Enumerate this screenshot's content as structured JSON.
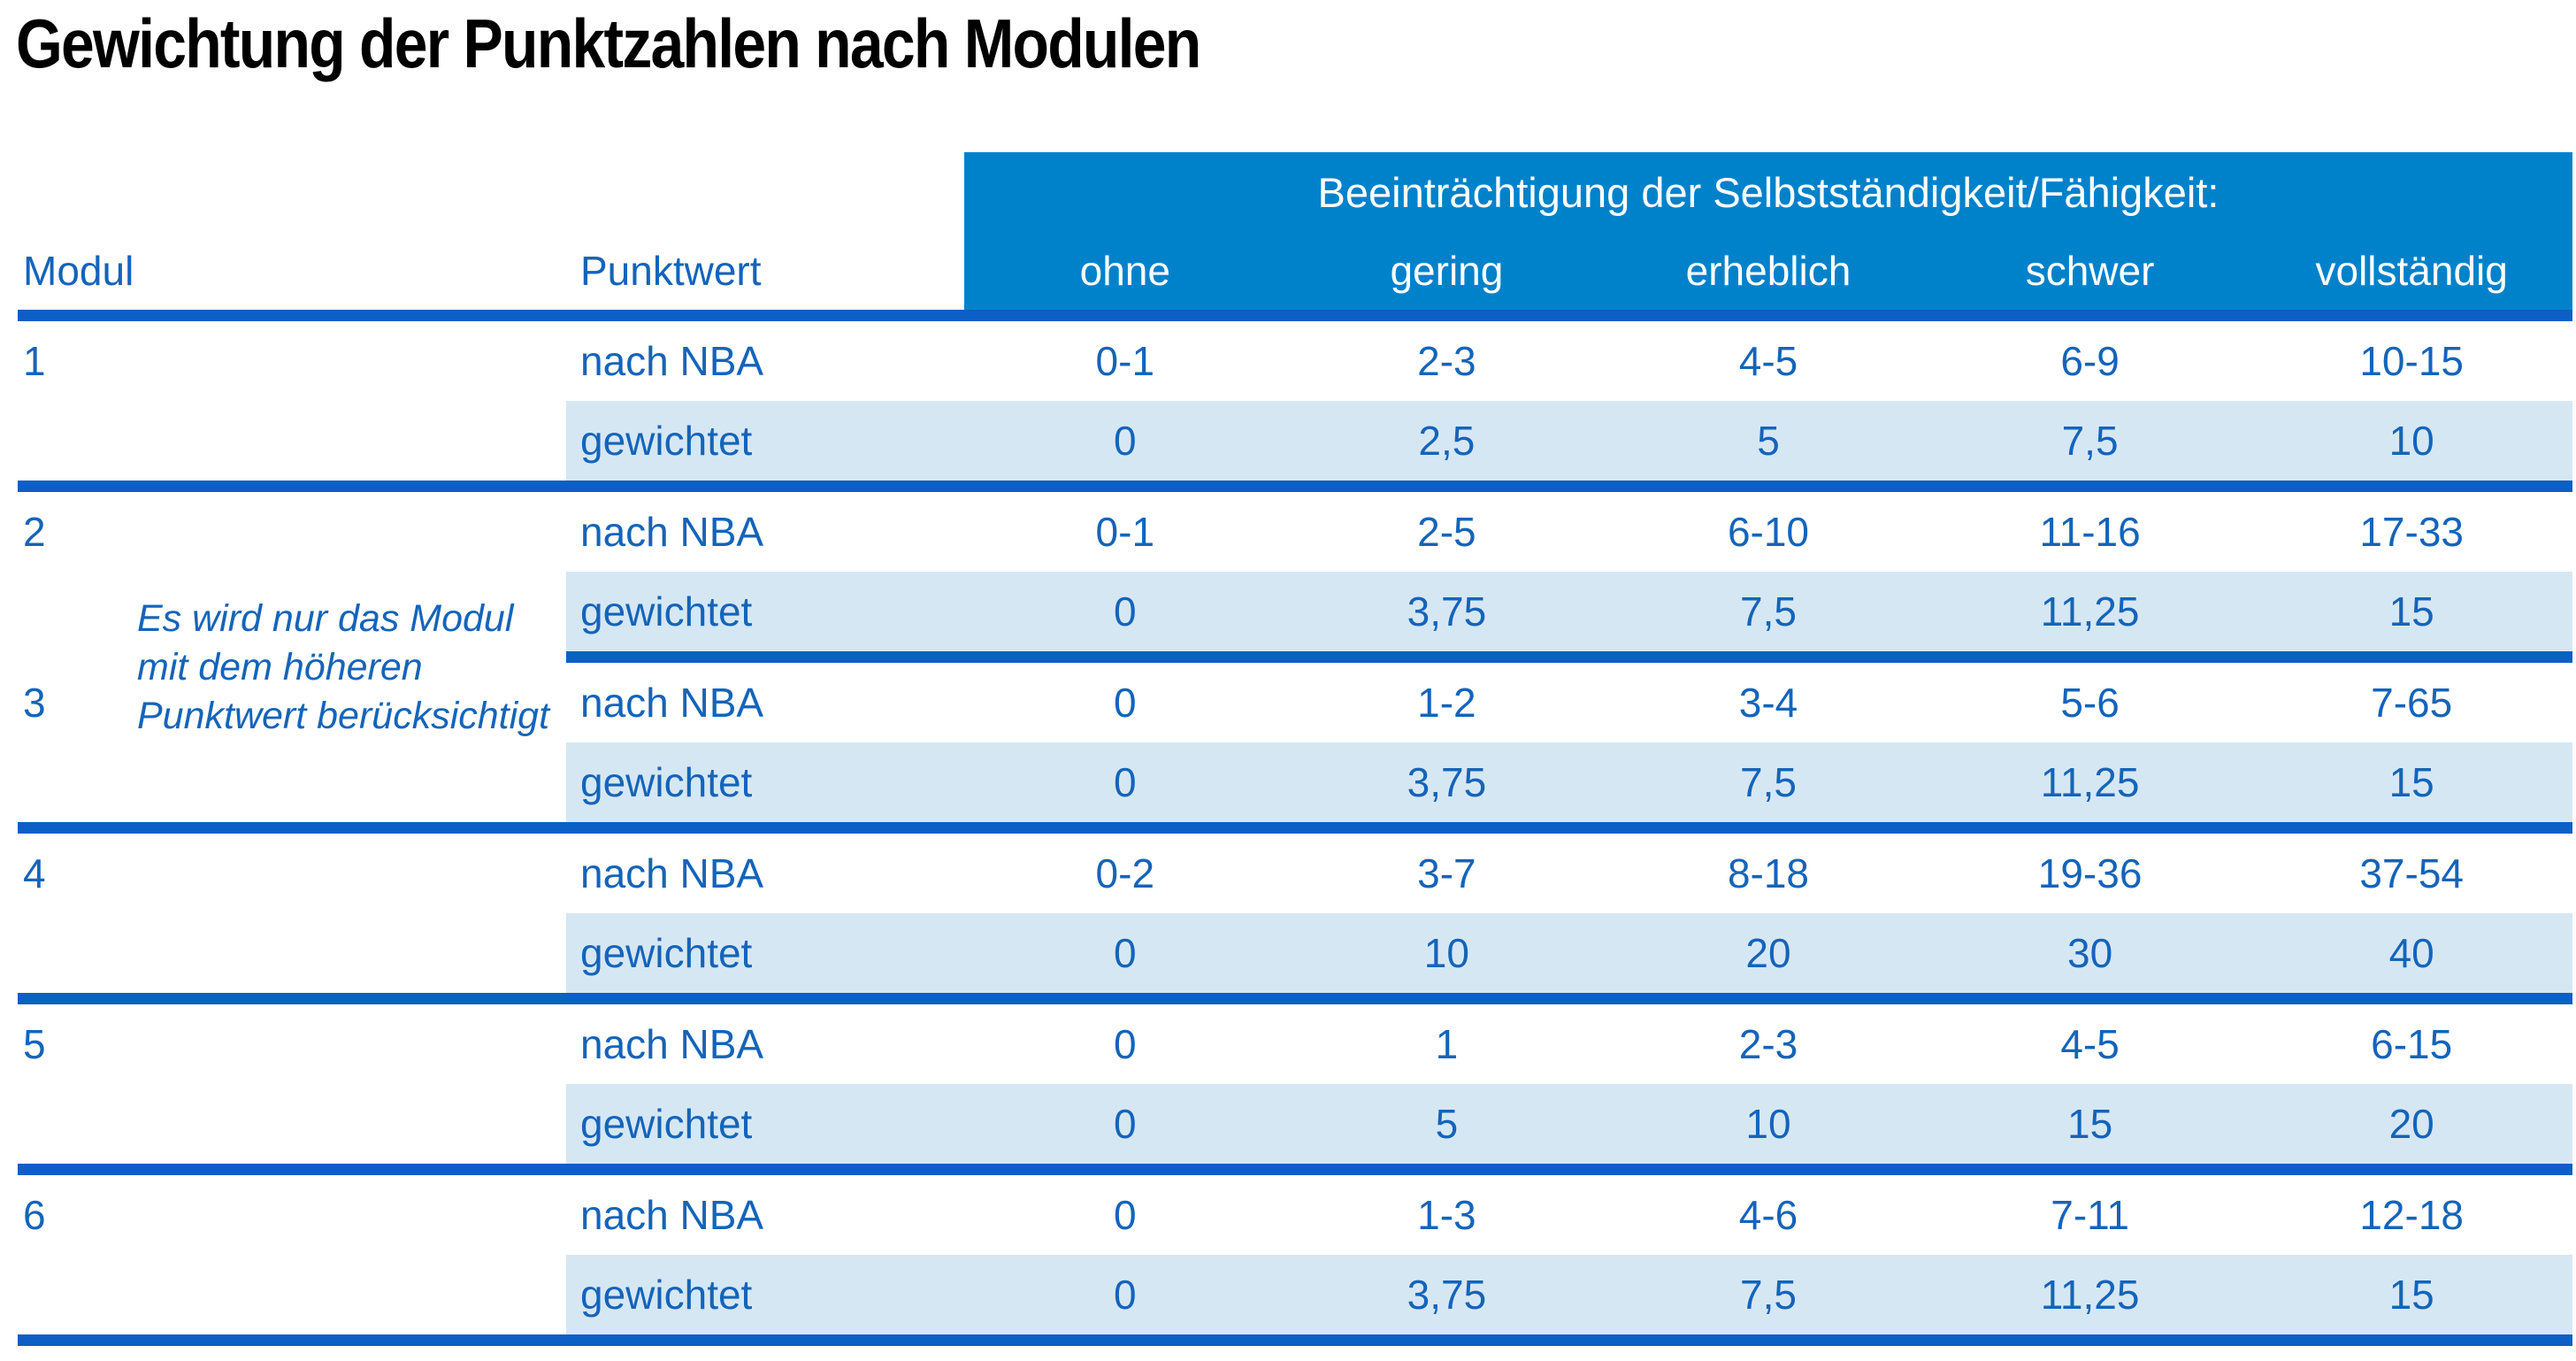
{
  "title": "Gewichtung der Punktzahlen nach Modulen",
  "colors": {
    "band_blue": "#0082cb",
    "rule_blue": "#0b5fc5",
    "text_blue": "#1464ba",
    "row_light_blue": "#d6e7f4",
    "title_black": "#000000"
  },
  "table": {
    "group_header": "Beeinträchtigung der Selbstständigkeit/Fähigkeit:",
    "col_modul": "Modul",
    "col_punktwert": "Punktwert",
    "levels": [
      "ohne",
      "gering",
      "erheblich",
      "schwer",
      "vollständig"
    ],
    "row_nba": "nach NBA",
    "row_weighted": "gewichtet",
    "note_lines": [
      "Es wird nur das Modul",
      "mit dem höheren",
      "Punktwert berücksichtigt"
    ],
    "modules": [
      {
        "id": "1",
        "separator": "full",
        "nba": [
          "0-1",
          "2-3",
          "4-5",
          "6-9",
          "10-15"
        ],
        "weighted": [
          "0",
          "2,5",
          "5",
          "7,5",
          "10"
        ]
      },
      {
        "id": "2",
        "separator": "partial",
        "nba": [
          "0-1",
          "2-5",
          "6-10",
          "11-16",
          "17-33"
        ],
        "weighted": [
          "0",
          "3,75",
          "7,5",
          "11,25",
          "15"
        ]
      },
      {
        "id": "3",
        "separator": "full",
        "nba": [
          "0",
          "1-2",
          "3-4",
          "5-6",
          "7-65"
        ],
        "weighted": [
          "0",
          "3,75",
          "7,5",
          "11,25",
          "15"
        ]
      },
      {
        "id": "4",
        "separator": "full",
        "nba": [
          "0-2",
          "3-7",
          "8-18",
          "19-36",
          "37-54"
        ],
        "weighted": [
          "0",
          "10",
          "20",
          "30",
          "40"
        ]
      },
      {
        "id": "5",
        "separator": "full",
        "nba": [
          "0",
          "1",
          "2-3",
          "4-5",
          "6-15"
        ],
        "weighted": [
          "0",
          "5",
          "10",
          "15",
          "20"
        ]
      },
      {
        "id": "6",
        "separator": "full",
        "nba": [
          "0",
          "1-3",
          "4-6",
          "7-11",
          "12-18"
        ],
        "weighted": [
          "0",
          "3,75",
          "7,5",
          "11,25",
          "15"
        ]
      }
    ]
  }
}
